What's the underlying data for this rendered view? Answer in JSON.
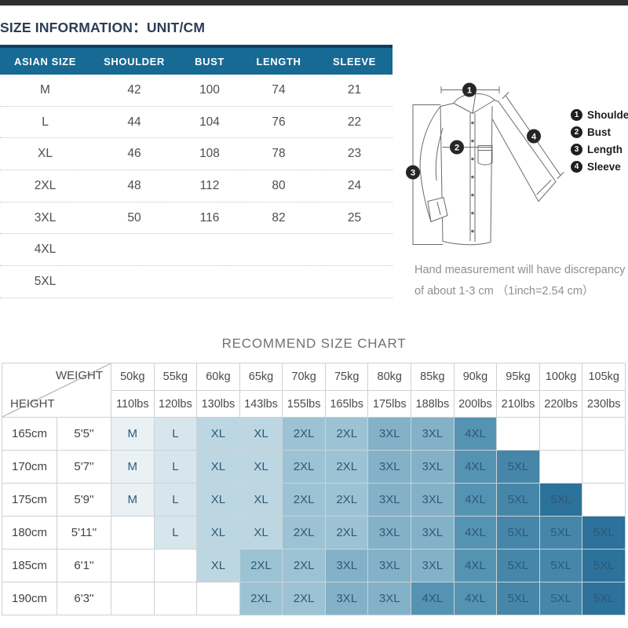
{
  "page": {
    "title": "SIZE INFORMATION：UNIT/CM",
    "recommend_title": "RECOMMEND SIZE CHART",
    "note": "Hand measurement will have discrepancy of about 1-3 cm （1inch=2.54 cm）"
  },
  "size_table": {
    "headers": [
      "ASIAN SIZE",
      "SHOULDER",
      "BUST",
      "LENGTH",
      "SLEEVE"
    ],
    "rows": [
      [
        "M",
        "42",
        "100",
        "74",
        "21"
      ],
      [
        "L",
        "44",
        "104",
        "76",
        "22"
      ],
      [
        "XL",
        "46",
        "108",
        "78",
        "23"
      ],
      [
        "2XL",
        "48",
        "112",
        "80",
        "24"
      ],
      [
        "3XL",
        "50",
        "116",
        "82",
        "25"
      ],
      [
        "4XL",
        "",
        "",
        "",
        ""
      ],
      [
        "5XL",
        "",
        "",
        "",
        ""
      ]
    ]
  },
  "diagram": {
    "legend": [
      {
        "num": "1",
        "label": "Shoulder"
      },
      {
        "num": "2",
        "label": "Bust"
      },
      {
        "num": "3",
        "label": "Length"
      },
      {
        "num": "4",
        "label": "Sleeve"
      }
    ]
  },
  "chart": {
    "weight_label": "WEIGHT",
    "height_label": "HEIGHT",
    "weights": [
      {
        "kg": "50kg",
        "lbs": "110lbs"
      },
      {
        "kg": "55kg",
        "lbs": "120lbs"
      },
      {
        "kg": "60kg",
        "lbs": "130lbs"
      },
      {
        "kg": "65kg",
        "lbs": "143lbs"
      },
      {
        "kg": "70kg",
        "lbs": "155lbs"
      },
      {
        "kg": "75kg",
        "lbs": "165lbs"
      },
      {
        "kg": "80kg",
        "lbs": "175lbs"
      },
      {
        "kg": "85kg",
        "lbs": "188lbs"
      },
      {
        "kg": "90kg",
        "lbs": "200lbs"
      },
      {
        "kg": "95kg",
        "lbs": "210lbs"
      },
      {
        "kg": "100kg",
        "lbs": "220lbs"
      },
      {
        "kg": "105kg",
        "lbs": "230lbs"
      }
    ],
    "rows": [
      {
        "cm": "165cm",
        "ft": "5'5''",
        "sizes": [
          "M",
          "L",
          "XL",
          "XL",
          "2XL",
          "2XL",
          "3XL",
          "3XL",
          "4XL",
          "",
          "",
          ""
        ]
      },
      {
        "cm": "170cm",
        "ft": "5'7''",
        "sizes": [
          "M",
          "L",
          "XL",
          "XL",
          "2XL",
          "2XL",
          "3XL",
          "3XL",
          "4XL",
          "5XL",
          "",
          ""
        ]
      },
      {
        "cm": "175cm",
        "ft": "5'9''",
        "sizes": [
          "M",
          "L",
          "XL",
          "XL",
          "2XL",
          "2XL",
          "3XL",
          "3XL",
          "4XL",
          "5XL",
          "5XL",
          ""
        ]
      },
      {
        "cm": "180cm",
        "ft": "5'11''",
        "sizes": [
          "",
          "L",
          "XL",
          "XL",
          "2XL",
          "2XL",
          "3XL",
          "3XL",
          "4XL",
          "5XL",
          "5XL",
          "5XL"
        ]
      },
      {
        "cm": "185cm",
        "ft": "6'1''",
        "sizes": [
          "",
          "",
          "XL",
          "2XL",
          "2XL",
          "3XL",
          "3XL",
          "3XL",
          "4XL",
          "5XL",
          "5XL",
          "5XL"
        ]
      },
      {
        "cm": "190cm",
        "ft": "6'3''",
        "sizes": [
          "",
          "",
          "",
          "2XL",
          "2XL",
          "3XL",
          "3XL",
          "4XL",
          "4XL",
          "5XL",
          "5XL",
          "5XL"
        ]
      }
    ],
    "dark_cells": [
      [
        2,
        10
      ],
      [
        3,
        11
      ],
      [
        4,
        11
      ],
      [
        5,
        11
      ]
    ]
  },
  "colors": {
    "header_teal": "#176a93",
    "header_navy": "#123e5d",
    "cell_text": "#2d5a75",
    "dark_cell": "#2c729a",
    "size_colors": {
      "M": "#e9f1f5",
      "L": "#d7e6ed",
      "XL": "#bdd7e2",
      "2XL": "#9cc3d4",
      "3XL": "#83b2c8",
      "4XL": "#5593b2",
      "5XL": "#4687a9"
    }
  }
}
